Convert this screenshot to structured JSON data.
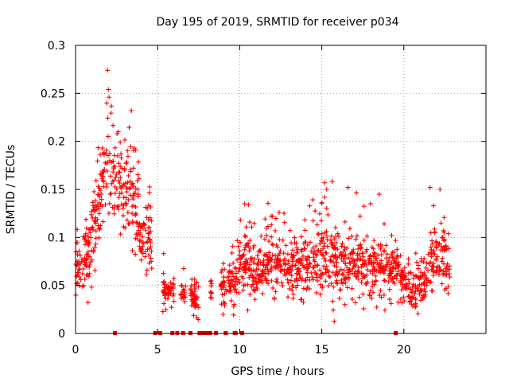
{
  "chart_data": {
    "type": "scatter",
    "title": "Day 195 of 2019, SRMTID for receiver p034",
    "xlabel": "GPS time / hours",
    "ylabel": "SRMTID / TECUs",
    "xlim": [
      0,
      25
    ],
    "ylim": [
      0,
      0.3
    ],
    "x_ticks": [
      0,
      5,
      10,
      15,
      20
    ],
    "x_tick_labels": [
      "0",
      "5",
      "10",
      "15",
      "20"
    ],
    "y_ticks": [
      0,
      0.05,
      0.1,
      0.15,
      0.2,
      0.25,
      0.3
    ],
    "y_tick_labels": [
      "0",
      "0.05",
      "0.1",
      "0.15",
      "0.2",
      "0.25",
      "0.3"
    ],
    "grid": true,
    "marker": "plus",
    "series_color": "#ff0000",
    "zero_marker_color": "#dd0000",
    "zero_value_times": [
      2.4,
      4.85,
      5.15,
      5.9,
      6.2,
      6.55,
      7.0,
      7.55,
      7.7,
      7.9,
      8.05,
      8.2,
      8.55,
      9.15,
      9.7,
      9.75,
      10.15,
      19.5
    ],
    "trend": [
      {
        "x": 0.0,
        "y": 0.075,
        "spread": 0.028
      },
      {
        "x": 0.4,
        "y": 0.07,
        "spread": 0.032
      },
      {
        "x": 0.8,
        "y": 0.085,
        "spread": 0.025
      },
      {
        "x": 1.2,
        "y": 0.115,
        "spread": 0.035
      },
      {
        "x": 1.6,
        "y": 0.15,
        "spread": 0.035
      },
      {
        "x": 2.0,
        "y": 0.18,
        "spread": 0.045
      },
      {
        "x": 2.4,
        "y": 0.17,
        "spread": 0.045
      },
      {
        "x": 2.8,
        "y": 0.14,
        "spread": 0.045
      },
      {
        "x": 3.2,
        "y": 0.15,
        "spread": 0.045
      },
      {
        "x": 3.6,
        "y": 0.13,
        "spread": 0.045
      },
      {
        "x": 4.0,
        "y": 0.1,
        "spread": 0.03
      },
      {
        "x": 4.5,
        "y": 0.1,
        "spread": 0.03
      },
      {
        "x": 5.0,
        "y": 0.05,
        "spread": 0.02
      },
      {
        "x": 5.6,
        "y": 0.045,
        "spread": 0.012
      },
      {
        "x": 6.5,
        "y": 0.045,
        "spread": 0.012
      },
      {
        "x": 7.2,
        "y": 0.035,
        "spread": 0.012
      },
      {
        "x": 8.5,
        "y": 0.045,
        "spread": 0.012
      },
      {
        "x": 9.5,
        "y": 0.055,
        "spread": 0.02
      },
      {
        "x": 10.5,
        "y": 0.075,
        "spread": 0.03
      },
      {
        "x": 11.0,
        "y": 0.065,
        "spread": 0.018
      },
      {
        "x": 12.0,
        "y": 0.075,
        "spread": 0.03
      },
      {
        "x": 13.0,
        "y": 0.065,
        "spread": 0.022
      },
      {
        "x": 14.0,
        "y": 0.07,
        "spread": 0.025
      },
      {
        "x": 15.0,
        "y": 0.08,
        "spread": 0.03
      },
      {
        "x": 16.0,
        "y": 0.07,
        "spread": 0.03
      },
      {
        "x": 17.0,
        "y": 0.075,
        "spread": 0.03
      },
      {
        "x": 18.0,
        "y": 0.065,
        "spread": 0.025
      },
      {
        "x": 19.0,
        "y": 0.07,
        "spread": 0.025
      },
      {
        "x": 19.6,
        "y": 0.06,
        "spread": 0.02
      },
      {
        "x": 20.5,
        "y": 0.045,
        "spread": 0.018
      },
      {
        "x": 21.3,
        "y": 0.05,
        "spread": 0.02
      },
      {
        "x": 22.0,
        "y": 0.085,
        "spread": 0.03
      },
      {
        "x": 22.8,
        "y": 0.065,
        "spread": 0.025
      }
    ],
    "coverage_start": 0.0,
    "coverage_end": 22.8,
    "coverage_gaps": [
      [
        4.65,
        5.3
      ],
      [
        6.0,
        6.4
      ],
      [
        6.7,
        7.0
      ],
      [
        7.5,
        8.2
      ],
      [
        8.3,
        8.8
      ]
    ],
    "sample_count": 1750,
    "peaks": [
      {
        "x": 2.0,
        "y": 0.254
      },
      {
        "x": 1.9,
        "y": 0.24
      },
      {
        "x": 3.4,
        "y": 0.232
      },
      {
        "x": 2.6,
        "y": 0.21
      },
      {
        "x": 15.3,
        "y": 0.15
      },
      {
        "x": 16.6,
        "y": 0.152
      },
      {
        "x": 18.5,
        "y": 0.145
      },
      {
        "x": 21.6,
        "y": 0.152
      },
      {
        "x": 22.2,
        "y": 0.15
      },
      {
        "x": 10.3,
        "y": 0.135
      },
      {
        "x": 12.0,
        "y": 0.122
      }
    ]
  }
}
